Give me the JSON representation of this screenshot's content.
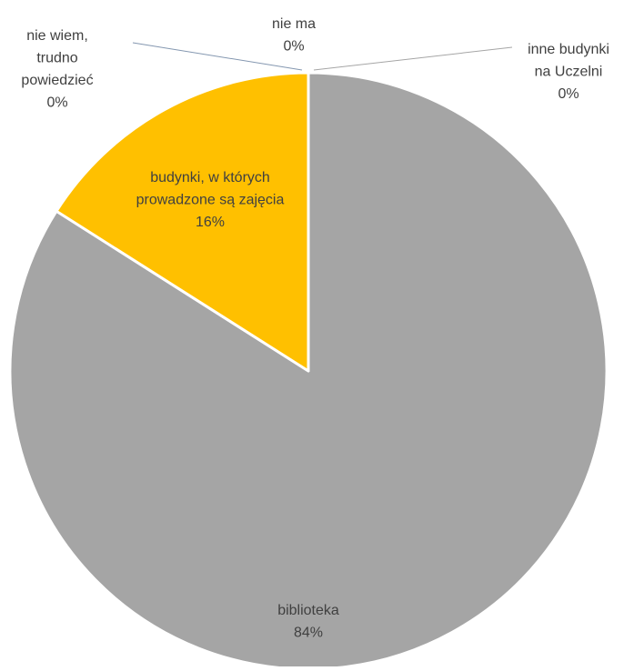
{
  "chart_data": {
    "type": "pie",
    "title": "",
    "slices": [
      {
        "label": [
          "biblioteka"
        ],
        "value_label": "84%",
        "value": 84,
        "color": "#a5a5a5"
      },
      {
        "label": [
          "budynki, w których",
          "prowadzone są zajęcia"
        ],
        "value_label": "16%",
        "value": 16,
        "color": "#ffc000"
      },
      {
        "label": [
          "nie wiem,",
          "trudno",
          "powiedzieć"
        ],
        "value_label": "0%",
        "value": 0,
        "color": "#5b9bd5"
      },
      {
        "label": [
          "nie ma"
        ],
        "value_label": "0%",
        "value": 0,
        "color": "#4472c4"
      },
      {
        "label": [
          "inne budynki",
          "na Uczelni"
        ],
        "value_label": "0%",
        "value": 0,
        "color": "#ed7d31"
      }
    ],
    "legend": "none"
  }
}
